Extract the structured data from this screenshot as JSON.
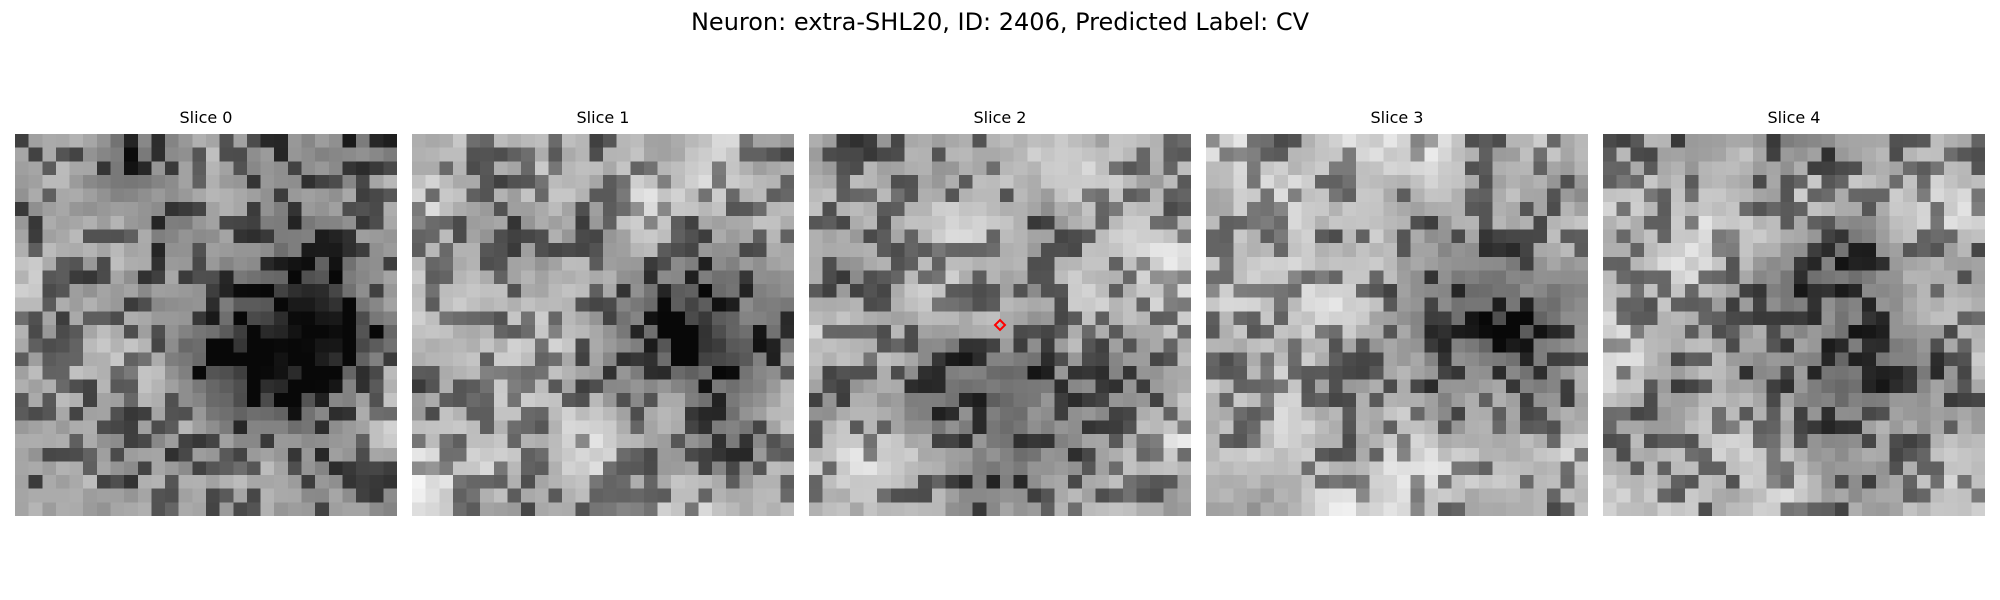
{
  "figure": {
    "title": "Neuron: extra-SHL20, ID: 2406, Predicted Label: CV"
  },
  "slices": [
    {
      "title": "Slice 0",
      "seed": 11,
      "base": 0.62,
      "dark_x": 0.72,
      "dark_y": 0.55,
      "dark_strength": 0.55,
      "marker": false
    },
    {
      "title": "Slice 1",
      "seed": 23,
      "base": 0.74,
      "dark_x": 0.75,
      "dark_y": 0.55,
      "dark_strength": 0.45,
      "marker": false
    },
    {
      "title": "Slice 2",
      "seed": 37,
      "base": 0.72,
      "dark_x": 0.5,
      "dark_y": 0.72,
      "dark_strength": 0.35,
      "marker": true
    },
    {
      "title": "Slice 3",
      "seed": 41,
      "base": 0.75,
      "dark_x": 0.78,
      "dark_y": 0.55,
      "dark_strength": 0.4,
      "marker": false
    },
    {
      "title": "Slice 4",
      "seed": 53,
      "base": 0.74,
      "dark_x": 0.65,
      "dark_y": 0.5,
      "dark_strength": 0.35,
      "marker": false
    }
  ],
  "grid_size": 28,
  "marker": {
    "color": "#ff0000",
    "row_frac": 0.5,
    "col_frac": 0.5
  }
}
